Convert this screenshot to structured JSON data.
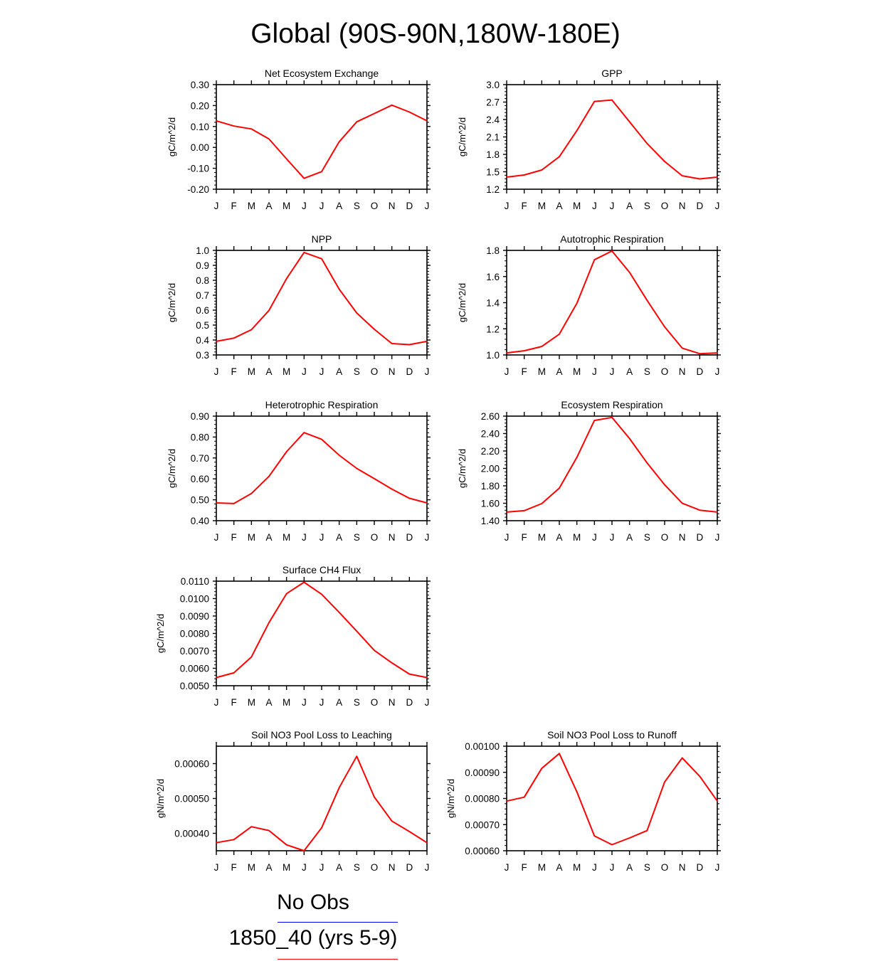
{
  "title": "Global (90S-90N,180W-180E)",
  "months": [
    "J",
    "F",
    "M",
    "A",
    "M",
    "J",
    "J",
    "A",
    "S",
    "O",
    "N",
    "D",
    "J"
  ],
  "colors": {
    "series": "#ff0000",
    "obs": "#0000ff",
    "axis": "#000000"
  },
  "legend": [
    {
      "label": "No Obs",
      "color": "#0000ff"
    },
    {
      "label": "1850_40 (yrs 5-9)",
      "color": "#ff0000"
    }
  ],
  "chart_data": [
    {
      "type": "line",
      "title": "Net Ecosystem Exchange",
      "ylabel": "gC/m^2/d",
      "ylim": [
        -0.2,
        0.3
      ],
      "yticks": [
        "-0.20",
        "-0.10",
        "0.00",
        "0.10",
        "0.20",
        "0.30"
      ],
      "x": [
        "J",
        "F",
        "M",
        "A",
        "M",
        "J",
        "J",
        "A",
        "S",
        "O",
        "N",
        "D",
        "J"
      ],
      "series": [
        {
          "values": [
            0.127,
            0.102,
            0.088,
            0.04,
            -0.055,
            -0.148,
            -0.116,
            0.027,
            0.122,
            0.162,
            0.202,
            0.169,
            0.127
          ]
        }
      ]
    },
    {
      "type": "line",
      "title": "GPP",
      "ylabel": "gC/m^2/d",
      "ylim": [
        1.2,
        3.0
      ],
      "yticks": [
        "1.2",
        "1.5",
        "1.8",
        "2.1",
        "2.4",
        "2.7",
        "3.0"
      ],
      "x": [
        "J",
        "F",
        "M",
        "A",
        "M",
        "J",
        "J",
        "A",
        "S",
        "O",
        "N",
        "D",
        "J"
      ],
      "series": [
        {
          "values": [
            1.408,
            1.445,
            1.53,
            1.76,
            2.209,
            2.711,
            2.736,
            2.361,
            1.987,
            1.678,
            1.431,
            1.377,
            1.408
          ]
        }
      ]
    },
    {
      "type": "line",
      "title": "NPP",
      "ylabel": "gC/m^2/d",
      "ylim": [
        0.3,
        1.0
      ],
      "yticks": [
        "0.3",
        "0.4",
        "0.5",
        "0.6",
        "0.7",
        "0.8",
        "0.9",
        "1.0"
      ],
      "x": [
        "J",
        "F",
        "M",
        "A",
        "M",
        "J",
        "J",
        "A",
        "S",
        "O",
        "N",
        "D",
        "J"
      ],
      "series": [
        {
          "values": [
            0.391,
            0.413,
            0.469,
            0.598,
            0.811,
            0.986,
            0.944,
            0.74,
            0.581,
            0.472,
            0.376,
            0.369,
            0.391
          ]
        }
      ]
    },
    {
      "type": "line",
      "title": "Autotrophic Respiration",
      "ylabel": "gC/m^2/d",
      "ylim": [
        1.0,
        1.8
      ],
      "yticks": [
        "1.0",
        "1.2",
        "1.4",
        "1.6",
        "1.8"
      ],
      "x": [
        "J",
        "F",
        "M",
        "A",
        "M",
        "J",
        "J",
        "A",
        "S",
        "O",
        "N",
        "D",
        "J"
      ],
      "series": [
        {
          "values": [
            1.016,
            1.032,
            1.065,
            1.159,
            1.395,
            1.728,
            1.795,
            1.632,
            1.418,
            1.215,
            1.052,
            1.01,
            1.016
          ]
        }
      ]
    },
    {
      "type": "line",
      "title": "Heterotrophic Respiration",
      "ylabel": "gC/m^2/d",
      "ylim": [
        0.4,
        0.9
      ],
      "yticks": [
        "0.40",
        "0.50",
        "0.60",
        "0.70",
        "0.80",
        "0.90"
      ],
      "x": [
        "J",
        "F",
        "M",
        "A",
        "M",
        "J",
        "J",
        "A",
        "S",
        "O",
        "N",
        "D",
        "J"
      ],
      "series": [
        {
          "values": [
            0.485,
            0.482,
            0.53,
            0.612,
            0.73,
            0.821,
            0.789,
            0.713,
            0.65,
            0.601,
            0.551,
            0.507,
            0.485
          ]
        }
      ]
    },
    {
      "type": "line",
      "title": "Ecosystem Respiration",
      "ylabel": "gC/m^2/d",
      "ylim": [
        1.4,
        2.6
      ],
      "yticks": [
        "1.40",
        "1.60",
        "1.80",
        "2.00",
        "2.20",
        "2.40",
        "2.60"
      ],
      "x": [
        "J",
        "F",
        "M",
        "A",
        "M",
        "J",
        "J",
        "A",
        "S",
        "O",
        "N",
        "D",
        "J"
      ],
      "series": [
        {
          "values": [
            1.499,
            1.515,
            1.596,
            1.774,
            2.127,
            2.55,
            2.585,
            2.343,
            2.063,
            1.812,
            1.601,
            1.521,
            1.499
          ]
        }
      ]
    },
    {
      "type": "line",
      "title": "Surface CH4 Flux",
      "ylabel": "gC/m^2/d",
      "ylim": [
        0.005,
        0.011
      ],
      "yticks": [
        "0.0050",
        "0.0060",
        "0.0070",
        "0.0080",
        "0.0090",
        "0.0100",
        "0.0110"
      ],
      "x": [
        "J",
        "F",
        "M",
        "A",
        "M",
        "J",
        "J",
        "A",
        "S",
        "O",
        "N",
        "D",
        "J"
      ],
      "series": [
        {
          "values": [
            0.00547,
            0.00574,
            0.00665,
            0.00862,
            0.01028,
            0.01094,
            0.01025,
            0.00921,
            0.00813,
            0.00703,
            0.00631,
            0.00567,
            0.00547
          ]
        }
      ]
    },
    {
      "type": "line",
      "title": "Soil NO3 Pool Loss to Leaching",
      "ylabel": "gN/m^2/d",
      "ylim": [
        0.00035,
        0.00065
      ],
      "yticks": [
        "0.00040",
        "0.00050",
        "0.00060"
      ],
      "ytick_values": [
        0.0004,
        0.0005,
        0.0006
      ],
      "x": [
        "J",
        "F",
        "M",
        "A",
        "M",
        "J",
        "J",
        "A",
        "S",
        "O",
        "N",
        "D",
        "J"
      ],
      "series": [
        {
          "values": [
            0.000373,
            0.000382,
            0.000419,
            0.000408,
            0.000367,
            0.00035,
            0.000416,
            0.000531,
            0.000621,
            0.000504,
            0.000435,
            0.000405,
            0.000373
          ]
        }
      ]
    },
    {
      "type": "line",
      "title": "Soil NO3 Pool Loss to Runoff",
      "ylabel": "gN/m^2/d",
      "ylim": [
        0.0006,
        0.001
      ],
      "yticks": [
        "0.00060",
        "0.00070",
        "0.00080",
        "0.00090",
        "0.00100"
      ],
      "x": [
        "J",
        "F",
        "M",
        "A",
        "M",
        "J",
        "J",
        "A",
        "S",
        "O",
        "N",
        "D",
        "J"
      ],
      "series": [
        {
          "values": [
            0.00079,
            0.000805,
            0.000915,
            0.000972,
            0.000825,
            0.000657,
            0.000623,
            0.000649,
            0.000677,
            0.000863,
            0.000955,
            0.000885,
            0.00079
          ]
        }
      ]
    }
  ]
}
